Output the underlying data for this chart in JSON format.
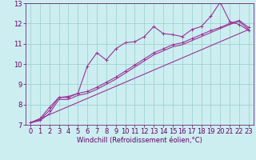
{
  "title": "",
  "xlabel": "Windchill (Refroidissement éolien,°C)",
  "xlim": [
    -0.5,
    23.5
  ],
  "ylim": [
    7,
    13
  ],
  "xticks": [
    0,
    1,
    2,
    3,
    4,
    5,
    6,
    7,
    8,
    9,
    10,
    11,
    12,
    13,
    14,
    15,
    16,
    17,
    18,
    19,
    20,
    21,
    22,
    23
  ],
  "yticks": [
    7,
    8,
    9,
    10,
    11,
    12,
    13
  ],
  "bg_color": "#cceef0",
  "grid_color": "#99cccc",
  "line_color": "#993399",
  "series": [
    {
      "x": [
        0,
        1,
        2,
        3,
        4,
        5,
        6,
        7,
        8,
        9,
        10,
        11,
        12,
        13,
        14,
        15,
        16,
        17,
        18,
        19,
        20,
        21,
        22,
        23
      ],
      "y": [
        7.1,
        7.3,
        7.85,
        8.35,
        8.4,
        8.55,
        9.9,
        10.55,
        10.2,
        10.75,
        11.05,
        11.1,
        11.35,
        11.85,
        11.5,
        11.45,
        11.35,
        11.7,
        11.85,
        12.35,
        13.05,
        12.1,
        11.95,
        11.65
      ],
      "marker": true
    },
    {
      "x": [
        0,
        1,
        2,
        3,
        4,
        5,
        6,
        7,
        8,
        9,
        10,
        11,
        12,
        13,
        14,
        15,
        16,
        17,
        18,
        19,
        20,
        21,
        22,
        23
      ],
      "y": [
        7.1,
        7.25,
        7.7,
        8.35,
        8.35,
        8.55,
        8.65,
        8.85,
        9.1,
        9.35,
        9.65,
        9.95,
        10.25,
        10.55,
        10.75,
        10.95,
        11.05,
        11.25,
        11.45,
        11.65,
        11.8,
        12.0,
        12.15,
        11.8
      ],
      "marker": true
    },
    {
      "x": [
        0,
        1,
        2,
        3,
        4,
        5,
        6,
        7,
        8,
        9,
        10,
        11,
        12,
        13,
        14,
        15,
        16,
        17,
        18,
        19,
        20,
        21,
        22,
        23
      ],
      "y": [
        7.1,
        7.2,
        7.55,
        8.25,
        8.25,
        8.45,
        8.55,
        8.75,
        9.0,
        9.25,
        9.55,
        9.85,
        10.15,
        10.45,
        10.65,
        10.85,
        10.95,
        11.15,
        11.35,
        11.55,
        11.75,
        11.95,
        12.1,
        11.7
      ],
      "marker": false
    },
    {
      "x": [
        0,
        23
      ],
      "y": [
        7.1,
        11.7
      ],
      "marker": false
    }
  ],
  "font_color": "#660066",
  "font_size": 6,
  "tick_font_size": 6,
  "marker": "+",
  "marker_size": 3,
  "line_width": 0.8
}
